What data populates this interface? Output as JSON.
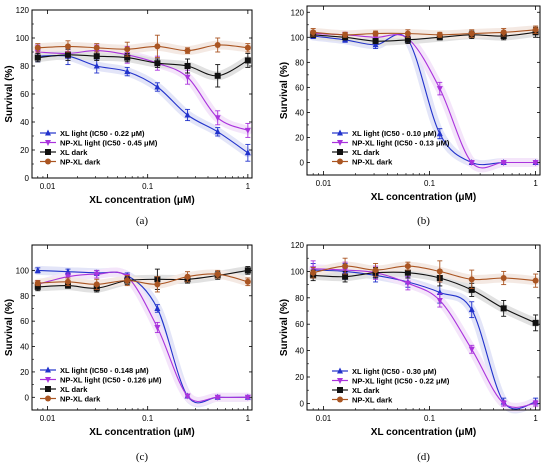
{
  "figure": {
    "xlabel": "XL concentration (μM)",
    "ylabel": "Survival (%)"
  },
  "chart_data": [
    {
      "type": "line",
      "panel": "(a)",
      "xlabel": "XL concentration (μM)",
      "ylabel": "Survival (%)",
      "xscale": "log",
      "xlim": [
        0.007,
        1.1
      ],
      "ylim": [
        0,
        120
      ],
      "xticks": [
        "0.01",
        "0.1",
        "1"
      ],
      "yticks": [
        "0",
        "20",
        "40",
        "60",
        "80",
        "100",
        "120"
      ],
      "legend_position": "bottom-left",
      "series": [
        {
          "name": "XL light (IC50 - 0.22 μM)",
          "color": "#2233cc",
          "marker": "triangle-up",
          "x": [
            0.008,
            0.016,
            0.031,
            0.0625,
            0.125,
            0.25,
            0.5,
            1
          ],
          "y": [
            87,
            87,
            80,
            76,
            65,
            45,
            33,
            18
          ],
          "err": [
            4,
            6,
            5,
            3,
            3,
            4,
            3,
            6
          ]
        },
        {
          "name": "NP-XL light (IC50 - 0.45 μM)",
          "color": "#aa33dd",
          "marker": "triangle-down",
          "x": [
            0.008,
            0.016,
            0.031,
            0.0625,
            0.125,
            0.25,
            0.5,
            1
          ],
          "y": [
            90,
            89,
            91,
            88,
            82,
            72,
            43,
            34
          ],
          "err": [
            5,
            3,
            4,
            6,
            5,
            5,
            5,
            5
          ]
        },
        {
          "name": "XL dark",
          "color": "#111111",
          "marker": "square",
          "x": [
            0.008,
            0.016,
            0.031,
            0.0625,
            0.125,
            0.25,
            0.5,
            1
          ],
          "y": [
            86,
            88,
            87,
            86,
            82,
            80,
            73,
            84
          ],
          "err": [
            3,
            4,
            3,
            3,
            3,
            5,
            8,
            5
          ]
        },
        {
          "name": "NP-XL dark",
          "color": "#aa5522",
          "marker": "circle",
          "x": [
            0.008,
            0.016,
            0.031,
            0.0625,
            0.125,
            0.25,
            0.5,
            1
          ],
          "y": [
            93,
            94,
            93,
            92,
            94,
            91,
            95,
            93
          ],
          "err": [
            3,
            4,
            3,
            5,
            8,
            2,
            5,
            3
          ]
        }
      ]
    },
    {
      "type": "line",
      "panel": "(b)",
      "xlabel": "XL concentration (μM)",
      "ylabel": "Survival (%)",
      "xscale": "log",
      "xlim": [
        0.007,
        1.1
      ],
      "ylim": [
        -10,
        125
      ],
      "xticks": [
        "0.01",
        "0.1",
        "1"
      ],
      "yticks": [
        "0",
        "20",
        "40",
        "60",
        "80",
        "100",
        "120"
      ],
      "legend_position": "bottom-left",
      "series": [
        {
          "name": "XL light (IC50 - 0.10 μM)",
          "color": "#2233cc",
          "marker": "triangle-up",
          "x": [
            0.008,
            0.016,
            0.031,
            0.0625,
            0.125,
            0.25,
            0.5,
            1
          ],
          "y": [
            101,
            98,
            94,
            98,
            23,
            0,
            0,
            0
          ],
          "err": [
            2,
            2,
            3,
            2,
            4,
            1,
            1,
            1
          ]
        },
        {
          "name": "NP-XL light (IC50 - 0.13 μM)",
          "color": "#aa33dd",
          "marker": "triangle-down",
          "x": [
            0.008,
            0.016,
            0.031,
            0.0625,
            0.125,
            0.25,
            0.5,
            1
          ],
          "y": [
            103,
            102,
            100,
            99,
            59,
            0,
            0,
            0
          ],
          "err": [
            2,
            2,
            3,
            2,
            5,
            1,
            1,
            1
          ]
        },
        {
          "name": "XL dark",
          "color": "#111111",
          "marker": "square",
          "x": [
            0.008,
            0.016,
            0.031,
            0.0625,
            0.125,
            0.25,
            0.5,
            1
          ],
          "y": [
            102,
            100,
            97,
            98,
            100,
            102,
            101,
            104
          ],
          "err": [
            2,
            2,
            2,
            3,
            2,
            3,
            3,
            4
          ]
        },
        {
          "name": "NP-XL dark",
          "color": "#aa5522",
          "marker": "circle",
          "x": [
            0.008,
            0.016,
            0.031,
            0.0625,
            0.125,
            0.25,
            0.5,
            1
          ],
          "y": [
            104,
            102,
            103,
            103,
            102,
            103,
            104,
            106
          ],
          "err": [
            3,
            2,
            2,
            3,
            2,
            3,
            3,
            3
          ]
        }
      ]
    },
    {
      "type": "line",
      "panel": "(c)",
      "xlabel": "XL concentration (μM)",
      "ylabel": "Survival (%)",
      "xscale": "log",
      "xlim": [
        0.007,
        1.1
      ],
      "ylim": [
        -10,
        120
      ],
      "xticks": [
        "0.01",
        "0.1",
        "1"
      ],
      "yticks": [
        "0",
        "20",
        "40",
        "60",
        "80",
        "100"
      ],
      "legend_position": "bottom-left",
      "series": [
        {
          "name": "XL light (IC50 - 0.148 μM)",
          "color": "#2233cc",
          "marker": "triangle-up",
          "x": [
            0.008,
            0.016,
            0.031,
            0.0625,
            0.125,
            0.25,
            0.5,
            1
          ],
          "y": [
            100,
            99,
            98,
            96,
            70,
            1,
            0,
            0
          ],
          "err": [
            2,
            2,
            2,
            2,
            3,
            1,
            1,
            1
          ]
        },
        {
          "name": "NP-XL light (IC50 - 0.126 μM)",
          "color": "#aa33dd",
          "marker": "triangle-down",
          "x": [
            0.008,
            0.016,
            0.031,
            0.0625,
            0.125,
            0.25,
            0.5,
            1
          ],
          "y": [
            89,
            95,
            97,
            95,
            55,
            1,
            0,
            0
          ],
          "err": [
            3,
            3,
            3,
            2,
            4,
            1,
            1,
            1
          ]
        },
        {
          "name": "XL dark",
          "color": "#111111",
          "marker": "square",
          "x": [
            0.008,
            0.016,
            0.031,
            0.0625,
            0.125,
            0.25,
            0.5,
            1
          ],
          "y": [
            87,
            88,
            86,
            92,
            93,
            93,
            96,
            100
          ],
          "err": [
            3,
            2,
            3,
            3,
            8,
            3,
            3,
            3
          ]
        },
        {
          "name": "NP-XL dark",
          "color": "#aa5522",
          "marker": "circle",
          "x": [
            0.008,
            0.016,
            0.031,
            0.0625,
            0.125,
            0.25,
            0.5,
            1
          ],
          "y": [
            90,
            91,
            89,
            92,
            89,
            95,
            97,
            91
          ],
          "err": [
            2,
            3,
            4,
            4,
            6,
            4,
            3,
            3
          ]
        }
      ]
    },
    {
      "type": "line",
      "panel": "(d)",
      "xlabel": "XL concentration (μM)",
      "ylabel": "Survival (%)",
      "xscale": "log",
      "xlim": [
        0.007,
        1.1
      ],
      "ylim": [
        -5,
        120
      ],
      "xticks": [
        "0.01",
        "0.1",
        "1"
      ],
      "yticks": [
        "0",
        "20",
        "40",
        "60",
        "80",
        "100",
        "120"
      ],
      "legend_position": "bottom-left",
      "series": [
        {
          "name": "XL light (IC50 - 0.30 μM)",
          "color": "#2233cc",
          "marker": "triangle-up",
          "x": [
            0.008,
            0.016,
            0.031,
            0.0625,
            0.125,
            0.25,
            0.5,
            1
          ],
          "y": [
            101,
            100,
            97,
            92,
            84,
            71,
            1,
            1
          ],
          "err": [
            5,
            6,
            5,
            4,
            8,
            6,
            3,
            3
          ]
        },
        {
          "name": "NP-XL light (IC50 - 0.22 μM)",
          "color": "#aa33dd",
          "marker": "triangle-down",
          "x": [
            0.008,
            0.016,
            0.031,
            0.0625,
            0.125,
            0.25,
            0.5,
            1
          ],
          "y": [
            102,
            101,
            99,
            91,
            78,
            41,
            0,
            0
          ],
          "err": [
            6,
            6,
            5,
            5,
            5,
            3,
            2,
            2
          ]
        },
        {
          "name": "XL dark",
          "color": "#111111",
          "marker": "square",
          "x": [
            0.008,
            0.016,
            0.031,
            0.0625,
            0.125,
            0.25,
            0.5,
            1
          ],
          "y": [
            97,
            96,
            99,
            99,
            95,
            86,
            72,
            61
          ],
          "err": [
            4,
            4,
            4,
            4,
            6,
            5,
            6,
            6
          ]
        },
        {
          "name": "NP-XL dark",
          "color": "#aa5522",
          "marker": "circle",
          "x": [
            0.008,
            0.016,
            0.031,
            0.0625,
            0.125,
            0.25,
            0.5,
            1
          ],
          "y": [
            99,
            104,
            101,
            104,
            100,
            94,
            95,
            93
          ],
          "err": [
            4,
            6,
            5,
            3,
            8,
            7,
            5,
            5
          ]
        }
      ]
    }
  ]
}
